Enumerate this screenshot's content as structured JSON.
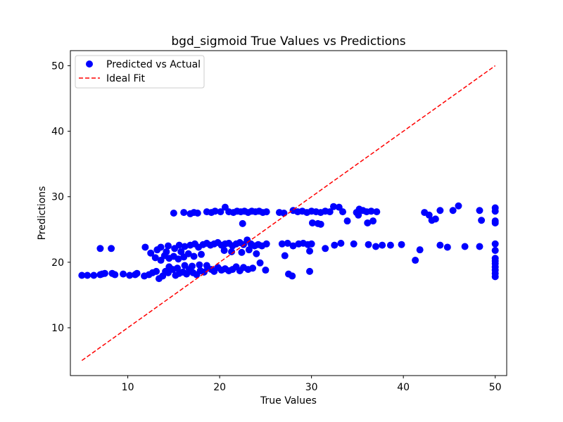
{
  "chart_data": {
    "type": "scatter",
    "title": "bgd_sigmoid True Values vs Predictions",
    "xlabel": "True Values",
    "ylabel": "Predictions",
    "xlim": [
      3.75,
      51.25
    ],
    "ylim": [
      2.7,
      52.3
    ],
    "xticks": [
      10,
      20,
      30,
      40,
      50
    ],
    "yticks": [
      10,
      20,
      30,
      40,
      50
    ],
    "grid": false,
    "legend_position": "top-left",
    "series": [
      {
        "name": "Predicted vs Actual",
        "kind": "scatter",
        "color": "#0000ff",
        "points": [
          [
            5.0,
            18.0
          ],
          [
            5.6,
            18.0
          ],
          [
            6.3,
            18.0
          ],
          [
            7.0,
            18.1
          ],
          [
            7.2,
            18.2
          ],
          [
            7.5,
            18.3
          ],
          [
            8.3,
            18.3
          ],
          [
            8.6,
            18.1
          ],
          [
            9.5,
            18.2
          ],
          [
            10.2,
            18.0
          ],
          [
            10.8,
            18.1
          ],
          [
            11.0,
            18.3
          ],
          [
            11.8,
            17.9
          ],
          [
            12.3,
            18.1
          ],
          [
            12.7,
            18.4
          ],
          [
            13.1,
            18.6
          ],
          [
            13.4,
            17.5
          ],
          [
            13.8,
            17.9
          ],
          [
            14.1,
            18.6
          ],
          [
            14.4,
            18.4
          ],
          [
            14.9,
            18.9
          ],
          [
            15.2,
            18.0
          ],
          [
            15.6,
            18.3
          ],
          [
            16.0,
            18.5
          ],
          [
            16.4,
            18.2
          ],
          [
            16.7,
            18.9
          ],
          [
            17.1,
            18.4
          ],
          [
            17.5,
            18.1
          ],
          [
            17.9,
            18.7
          ],
          [
            18.3,
            18.5
          ],
          [
            18.7,
            19.1
          ],
          [
            19.1,
            18.9
          ],
          [
            19.4,
            18.6
          ],
          [
            19.8,
            19.2
          ],
          [
            20.2,
            18.8
          ],
          [
            20.6,
            19.0
          ],
          [
            21.0,
            18.7
          ],
          [
            21.4,
            18.9
          ],
          [
            21.8,
            19.3
          ],
          [
            22.2,
            18.7
          ],
          [
            22.6,
            19.2
          ],
          [
            23.1,
            18.9
          ],
          [
            23.6,
            19.1
          ],
          [
            24.4,
            19.9
          ],
          [
            25.0,
            18.8
          ],
          [
            14.5,
            19.3
          ],
          [
            15.4,
            19.1
          ],
          [
            16.2,
            19.5
          ],
          [
            17.0,
            19.4
          ],
          [
            17.8,
            19.6
          ],
          [
            18.6,
            19.5
          ],
          [
            13.0,
            20.7
          ],
          [
            13.6,
            20.3
          ],
          [
            14.0,
            21.0
          ],
          [
            14.5,
            20.6
          ],
          [
            15.0,
            20.9
          ],
          [
            15.5,
            20.5
          ],
          [
            16.1,
            20.8
          ],
          [
            16.6,
            21.3
          ],
          [
            17.2,
            20.9
          ],
          [
            18.0,
            21.2
          ],
          [
            12.5,
            21.4
          ],
          [
            14.2,
            21.6
          ],
          [
            15.8,
            21.6
          ],
          [
            7.0,
            22.1
          ],
          [
            8.2,
            22.1
          ],
          [
            11.9,
            22.3
          ],
          [
            13.2,
            21.9
          ],
          [
            13.6,
            22.3
          ],
          [
            14.4,
            22.5
          ],
          [
            15.1,
            22.1
          ],
          [
            15.6,
            22.6
          ],
          [
            16.2,
            22.4
          ],
          [
            16.8,
            22.6
          ],
          [
            17.3,
            22.8
          ],
          [
            17.7,
            22.3
          ],
          [
            18.2,
            22.7
          ],
          [
            18.6,
            22.9
          ],
          [
            19.0,
            22.6
          ],
          [
            19.4,
            22.8
          ],
          [
            19.8,
            23.0
          ],
          [
            20.2,
            22.6
          ],
          [
            20.6,
            22.8
          ],
          [
            21.0,
            22.9
          ],
          [
            21.4,
            22.5
          ],
          [
            21.8,
            22.8
          ],
          [
            22.2,
            23.0
          ],
          [
            22.6,
            22.7
          ],
          [
            23.0,
            23.4
          ],
          [
            23.4,
            22.8
          ],
          [
            23.8,
            22.5
          ],
          [
            24.2,
            22.7
          ],
          [
            24.6,
            22.5
          ],
          [
            25.1,
            22.8
          ],
          [
            20.5,
            21.8
          ],
          [
            21.3,
            21.6
          ],
          [
            22.4,
            21.5
          ],
          [
            23.2,
            21.9
          ],
          [
            24.0,
            21.3
          ],
          [
            26.8,
            22.8
          ],
          [
            27.4,
            22.9
          ],
          [
            28.0,
            22.5
          ],
          [
            28.6,
            22.8
          ],
          [
            29.1,
            22.9
          ],
          [
            29.6,
            22.7
          ],
          [
            30.0,
            22.8
          ],
          [
            31.5,
            22.1
          ],
          [
            32.5,
            22.6
          ],
          [
            33.2,
            22.9
          ],
          [
            34.6,
            22.8
          ],
          [
            36.2,
            22.7
          ],
          [
            37.0,
            22.4
          ],
          [
            37.7,
            22.6
          ],
          [
            38.6,
            22.6
          ],
          [
            39.8,
            22.7
          ],
          [
            41.8,
            21.9
          ],
          [
            44.0,
            22.6
          ],
          [
            44.8,
            22.3
          ],
          [
            46.7,
            22.4
          ],
          [
            48.3,
            22.4
          ],
          [
            27.1,
            21.0
          ],
          [
            29.8,
            21.7
          ],
          [
            41.3,
            20.3
          ],
          [
            27.5,
            18.2
          ],
          [
            27.9,
            17.9
          ],
          [
            29.8,
            18.6
          ],
          [
            22.5,
            25.9
          ],
          [
            15.0,
            27.5
          ],
          [
            16.1,
            27.6
          ],
          [
            16.8,
            27.4
          ],
          [
            17.2,
            27.6
          ],
          [
            17.6,
            27.5
          ],
          [
            18.6,
            27.7
          ],
          [
            19.1,
            27.6
          ],
          [
            19.5,
            27.8
          ],
          [
            20.1,
            27.7
          ],
          [
            20.6,
            28.4
          ],
          [
            21.0,
            27.7
          ],
          [
            21.5,
            27.6
          ],
          [
            21.9,
            27.8
          ],
          [
            22.3,
            27.7
          ],
          [
            22.7,
            27.8
          ],
          [
            23.1,
            27.6
          ],
          [
            23.5,
            27.8
          ],
          [
            23.9,
            27.7
          ],
          [
            24.3,
            27.8
          ],
          [
            24.7,
            27.6
          ],
          [
            25.1,
            27.7
          ],
          [
            26.5,
            27.6
          ],
          [
            27.0,
            27.5
          ],
          [
            28.0,
            27.9
          ],
          [
            28.5,
            27.7
          ],
          [
            29.0,
            27.8
          ],
          [
            29.5,
            27.6
          ],
          [
            30.0,
            27.8
          ],
          [
            30.5,
            27.7
          ],
          [
            31.0,
            27.6
          ],
          [
            31.5,
            27.8
          ],
          [
            32.0,
            27.7
          ],
          [
            32.4,
            28.5
          ],
          [
            33.0,
            28.4
          ],
          [
            33.4,
            27.7
          ],
          [
            34.9,
            27.6
          ],
          [
            35.2,
            28.1
          ],
          [
            35.6,
            27.9
          ],
          [
            36.0,
            27.7
          ],
          [
            36.5,
            27.8
          ],
          [
            37.1,
            27.7
          ],
          [
            30.1,
            26.0
          ],
          [
            30.7,
            25.9
          ],
          [
            31.0,
            25.8
          ],
          [
            33.9,
            26.3
          ],
          [
            35.1,
            27.2
          ],
          [
            36.1,
            26.0
          ],
          [
            36.7,
            26.3
          ],
          [
            42.3,
            27.6
          ],
          [
            42.8,
            27.2
          ],
          [
            43.1,
            26.4
          ],
          [
            43.5,
            26.6
          ],
          [
            44.0,
            27.9
          ],
          [
            45.4,
            27.9
          ],
          [
            46.0,
            28.6
          ],
          [
            48.3,
            27.9
          ],
          [
            48.5,
            26.4
          ],
          [
            50.0,
            28.3
          ],
          [
            50.0,
            27.8
          ],
          [
            50.0,
            26.3
          ],
          [
            50.0,
            26.0
          ],
          [
            50.0,
            22.8
          ],
          [
            50.0,
            21.8
          ],
          [
            50.0,
            20.6
          ],
          [
            50.0,
            20.2
          ],
          [
            50.0,
            19.8
          ],
          [
            50.0,
            19.3
          ],
          [
            50.0,
            18.8
          ],
          [
            50.0,
            18.3
          ],
          [
            50.0,
            17.8
          ]
        ]
      },
      {
        "name": "Ideal Fit",
        "kind": "line",
        "style": "dashed",
        "color": "#ff0000",
        "points": [
          [
            5.0,
            5.0
          ],
          [
            50.0,
            50.0
          ]
        ]
      }
    ]
  }
}
